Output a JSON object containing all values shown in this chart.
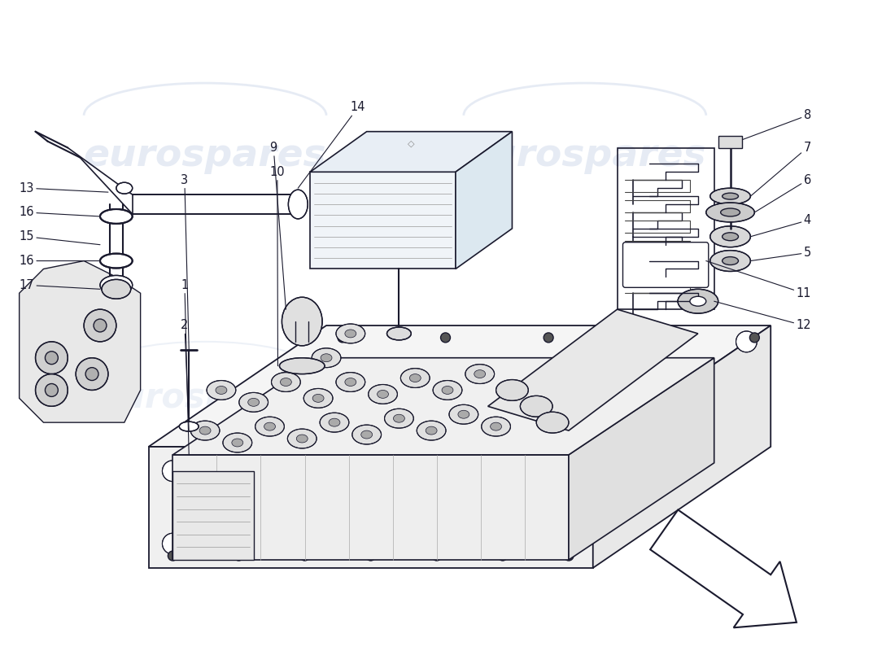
{
  "background_color": "#ffffff",
  "line_color": "#1a1a2e",
  "lw": 1.0,
  "watermark_color": "#c8d4e8",
  "watermark_alpha": 0.45,
  "label_fontsize": 10.5,
  "watermark_fontsize": 34,
  "watermark_text": "eurospares",
  "arrow_color": "#111111"
}
